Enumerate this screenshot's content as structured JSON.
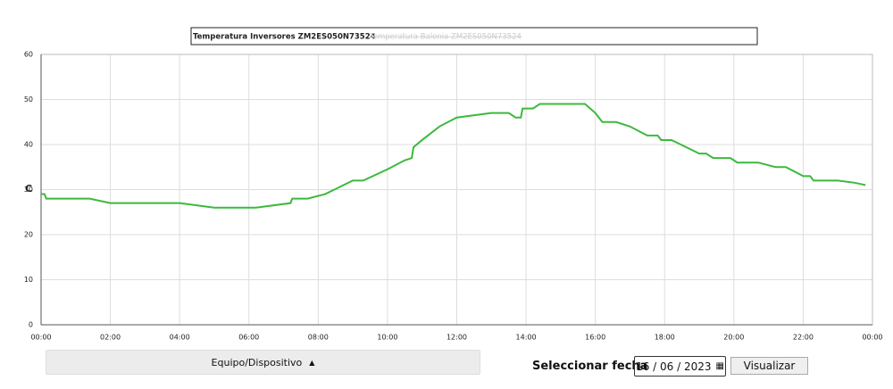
{
  "chart_data": {
    "type": "line",
    "y_label": "C",
    "x": [
      0,
      0.1,
      0.15,
      1.4,
      2.0,
      4.0,
      5.0,
      6.2,
      7.2,
      7.25,
      7.7,
      8.2,
      9.0,
      9.3,
      10.0,
      10.5,
      10.7,
      10.75,
      11.0,
      11.5,
      12.0,
      13.0,
      13.5,
      13.7,
      13.85,
      13.9,
      14.2,
      14.4,
      15.7,
      16.0,
      16.2,
      16.6,
      17.0,
      17.5,
      17.8,
      17.9,
      18.2,
      18.6,
      19.0,
      19.2,
      19.4,
      19.9,
      20.1,
      20.7,
      21.2,
      21.5,
      22.0,
      22.2,
      22.3,
      23.0,
      23.5,
      23.8
    ],
    "series": [
      {
        "name": "Temperatura Inversores ZM2ES050N73524",
        "color": "#3cb93c",
        "values": [
          29,
          29,
          28,
          28,
          27,
          27,
          26,
          26,
          27,
          28,
          28,
          29,
          32,
          32,
          34.5,
          36.5,
          37,
          39.4,
          41,
          44,
          46,
          47,
          47,
          46,
          46,
          48,
          48,
          49,
          49,
          47,
          45,
          45,
          44,
          42,
          42,
          41,
          41,
          39.5,
          38,
          38,
          37,
          37,
          36,
          36,
          35,
          35,
          33,
          33,
          32,
          32,
          31.5,
          31
        ]
      }
    ],
    "hidden_legend_entries": [
      "Temperatura Balonia ZM2ES050N73524"
    ],
    "xlim": [
      0,
      24
    ],
    "xticks": [
      {
        "value": 0,
        "label": "00:00"
      },
      {
        "value": 2,
        "label": "02:00"
      },
      {
        "value": 4,
        "label": "04:00"
      },
      {
        "value": 6,
        "label": "06:00"
      },
      {
        "value": 8,
        "label": "08:00"
      },
      {
        "value": 10,
        "label": "10:00"
      },
      {
        "value": 12,
        "label": "12:00"
      },
      {
        "value": 14,
        "label": "14:00"
      },
      {
        "value": 16,
        "label": "16:00"
      },
      {
        "value": 18,
        "label": "18:00"
      },
      {
        "value": 20,
        "label": "20:00"
      },
      {
        "value": 22,
        "label": "22:00"
      },
      {
        "value": 24,
        "label": "00:00"
      }
    ],
    "ylim": [
      0,
      60
    ],
    "yticks": [
      0,
      10,
      20,
      30,
      40,
      50,
      60
    ],
    "grid": true
  },
  "controls": {
    "device_button": "Equipo/Dispositivo",
    "date_label": "Seleccionar fecha",
    "date_value": "16 / 06 / 2023",
    "submit_button": "Visualizar"
  }
}
